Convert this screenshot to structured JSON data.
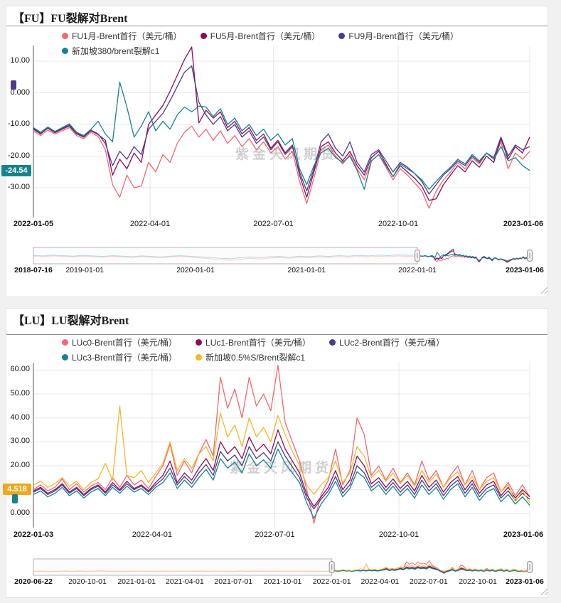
{
  "page": {
    "watermark": "紫金天风期货"
  },
  "chart_data": [
    {
      "type": "line",
      "title": "【FU】FU裂解对Brent",
      "x_range": [
        "2022-01-05",
        "2023-01-06"
      ],
      "ylim": [
        -38,
        14
      ],
      "y_ticks": [
        10,
        0,
        -10,
        -20,
        -30
      ],
      "y_tick_labels": [
        "10.00",
        "0.000",
        "-10.00",
        "-20.00",
        "-30.00"
      ],
      "x_ticks": [
        {
          "label": "2022-01-05",
          "f": 0
        },
        {
          "label": "2022-04-01",
          "f": 0.235
        },
        {
          "label": "2022-07-01",
          "f": 0.4836
        },
        {
          "label": "2022-10-01",
          "f": 0.735
        },
        {
          "label": "2023-01-06",
          "f": 1
        }
      ],
      "end_badge": {
        "text": "-24.54",
        "color": "#16828D"
      },
      "series": [
        {
          "name": "FU1月-Brent首行（美元/桶）",
          "color": "#F2686F",
          "values": [
            -12,
            -13.5,
            -11.8,
            -13,
            -12,
            -11,
            -13.5,
            -14.5,
            -12.5,
            -13.8,
            -18,
            -29,
            -33,
            -26,
            -30,
            -29.5,
            -22,
            -25,
            -19.5,
            -22,
            -16,
            -12.5,
            -10.5,
            -14,
            -11.5,
            -15,
            -12,
            -16,
            -13.5,
            -17,
            -14.5,
            -18,
            -15.5,
            -19,
            -17,
            -21,
            -18.5,
            -28,
            -35,
            -27,
            -18,
            -16.5,
            -20,
            -22.5,
            -19.5,
            -24,
            -27.5,
            -21.5,
            -19.5,
            -23.5,
            -27.5,
            -24,
            -26,
            -28.5,
            -31,
            -36.5,
            -31,
            -27.5,
            -25,
            -22,
            -24,
            -20.5,
            -22.5,
            -19,
            -21,
            -15.5,
            -24,
            -19,
            -21,
            -18.5
          ]
        },
        {
          "name": "FU5月-Brent首行（美元/桶）",
          "color": "#8A0E57",
          "values": [
            -11.5,
            -13,
            -11.2,
            -12.6,
            -11.5,
            -10.5,
            -13,
            -14,
            -12,
            -13.2,
            -15,
            -26,
            -21,
            -24,
            -19,
            -22,
            -10,
            -7,
            -4,
            0.5,
            5.5,
            10.5,
            14.5,
            -9.5,
            -5.5,
            -8,
            -6,
            -11,
            -9,
            -13,
            -11,
            -15,
            -13,
            -17.5,
            -15,
            -19,
            -16.5,
            -26,
            -33,
            -25,
            -17,
            -15.5,
            -19,
            -21.5,
            -18.5,
            -23,
            -26,
            -20.5,
            -18.5,
            -22.5,
            -26.5,
            -23,
            -25,
            -27,
            -29.5,
            -34,
            -33.5,
            -29,
            -26,
            -23,
            -25,
            -21.5,
            -23.5,
            -20,
            -22,
            -14.5,
            -21,
            -17,
            -19,
            -14
          ]
        },
        {
          "name": "FU9月-Brent首行（美元/桶）",
          "color": "#4B3A8F",
          "values": [
            -11.2,
            -12.8,
            -11,
            -12.4,
            -11.2,
            -10.2,
            -12.8,
            -13.8,
            -11.8,
            -13,
            -16,
            -23,
            -18.5,
            -21,
            -17,
            -19.5,
            -11.5,
            -9,
            -6.5,
            -2.5,
            2,
            6.5,
            8.5,
            -3,
            -7,
            -10,
            -7.5,
            -12,
            -10,
            -14,
            -12,
            -16,
            -14,
            -18,
            -15.5,
            -19.5,
            -17,
            -25,
            -31,
            -24,
            -15.5,
            -13,
            -17.5,
            -20,
            -15.5,
            -22,
            -25,
            -19.5,
            -18,
            -21.5,
            -25,
            -22,
            -23.5,
            -25.5,
            -28,
            -32,
            -29,
            -26,
            -24,
            -21.5,
            -23,
            -20,
            -22,
            -19,
            -20.5,
            -14,
            -20,
            -16.5,
            -18,
            -17
          ]
        },
        {
          "name": "新加坡380/brent裂解c1",
          "color": "#16828D",
          "values": [
            -11,
            -12.5,
            -10.8,
            -12.2,
            -11,
            -9.8,
            -12.5,
            -13.5,
            -11.5,
            -9,
            -13,
            -15.5,
            3.4,
            -4.5,
            -14,
            -10.5,
            -6,
            -12,
            -9,
            -11.5,
            -7,
            -4.5,
            -6,
            -4.2,
            -4.5,
            -7.5,
            -5,
            -10,
            -8,
            -12,
            -10,
            -13.5,
            -11.5,
            -15,
            -13,
            -16.5,
            -14.5,
            -24,
            -29,
            -23,
            -19,
            -17.5,
            -20.5,
            -22,
            -20,
            -24.5,
            -30.5,
            -21.5,
            -19.5,
            -23,
            -26.5,
            -22.5,
            -24,
            -25.5,
            -27.5,
            -30.5,
            -28,
            -25.5,
            -23.5,
            -21,
            -22.5,
            -19.5,
            -21.5,
            -19,
            -21,
            -17,
            -21.5,
            -20.5,
            -23,
            -24.54
          ]
        }
      ],
      "navigator": {
        "selected_from": 0.7737,
        "range_ticks": [
          {
            "label": "2018-07-16",
            "f": 0
          },
          {
            "label": "2019-01-01",
            "f": 0.1034
          },
          {
            "label": "2020-01-01",
            "f": 0.3266
          },
          {
            "label": "2021-01-01",
            "f": 0.5505
          },
          {
            "label": "2022-01-01",
            "f": 0.7737
          },
          {
            "label": "2023-01-06",
            "f": 1
          }
        ],
        "history_series": [
          {
            "color": "#F2686F",
            "values": [
              -12,
              -14,
              -11,
              -13,
              -15,
              -12,
              -14,
              -16,
              -13,
              -15,
              -17,
              -14,
              -16,
              -18,
              -15,
              -13,
              -16,
              -19,
              -22,
              -26,
              -28,
              -24,
              -20,
              -23,
              -19,
              -17,
              -20,
              -16,
              -18,
              -15,
              -17,
              -14,
              -16,
              -13,
              -15,
              -12,
              -14,
              -11,
              -13,
              -12
            ]
          },
          {
            "color": "#16828D",
            "values": [
              -9,
              -11,
              -8,
              -10,
              -12,
              -9,
              -11,
              -13,
              -10,
              -12,
              -14,
              -11,
              -13,
              -15,
              -12,
              -10,
              -13,
              -15,
              -17,
              -20,
              -22,
              -18,
              -15,
              -18,
              -14,
              -13,
              -16,
              -12,
              -14,
              -11,
              -13,
              -10,
              -12,
              -9,
              -11,
              -8,
              -10,
              -7,
              -9,
              -8
            ]
          }
        ]
      }
    },
    {
      "type": "line",
      "title": "【LU】LU裂解对Brent",
      "x_range": [
        "2022-01-03",
        "2023-01-06"
      ],
      "ylim": [
        -6,
        63
      ],
      "y_ticks": [
        60,
        50,
        40,
        30,
        20,
        10,
        0
      ],
      "y_tick_labels": [
        "60.00",
        "50.00",
        "40.00",
        "30.00",
        "20.00",
        "10.00",
        "0.000"
      ],
      "x_ticks": [
        {
          "label": "2022-01-03",
          "f": 0
        },
        {
          "label": "2022-04-01",
          "f": 0.2391
        },
        {
          "label": "2022-07-01",
          "f": 0.4864
        },
        {
          "label": "2022-10-01",
          "f": 0.7364
        },
        {
          "label": "2023-01-06",
          "f": 1
        }
      ],
      "end_badge": {
        "text": "4.518",
        "color": "#F0A71D"
      },
      "series": [
        {
          "name": "LUc0-Brent首行（美元/桶）",
          "color": "#F2686F",
          "values": [
            10,
            12,
            9.5,
            11,
            14.5,
            10,
            12.5,
            9,
            11.5,
            13,
            10,
            15,
            11,
            16,
            12,
            14,
            10.5,
            15.5,
            20,
            29,
            16,
            22,
            17,
            25,
            31,
            24,
            57,
            44,
            52,
            40,
            57,
            45,
            50,
            43,
            62,
            38,
            30,
            22,
            10,
            -4,
            8,
            14,
            27,
            12,
            18,
            40,
            33,
            16,
            20,
            14,
            19,
            13,
            17,
            12,
            22,
            14,
            18,
            11,
            16,
            20,
            12,
            18,
            10,
            15,
            17,
            9,
            13,
            7.5,
            12,
            7
          ]
        },
        {
          "name": "LUc1-Brent首行（美元/桶）",
          "color": "#8A0E57",
          "values": [
            9.5,
            11,
            8.5,
            10,
            12.5,
            9,
            11,
            8,
            10.5,
            12,
            9,
            13,
            10,
            13.5,
            10.5,
            12,
            9.5,
            13,
            16,
            22,
            13,
            17,
            14,
            19,
            23,
            18,
            30,
            25,
            28,
            23,
            32,
            26,
            29,
            25,
            35,
            27,
            22,
            17,
            8,
            3,
            7,
            11,
            18,
            10,
            14,
            24,
            20,
            12.5,
            15,
            11,
            14.5,
            10.5,
            13.5,
            9.5,
            16,
            11,
            14,
            9,
            13,
            15.5,
            10,
            14,
            8.5,
            12,
            13.5,
            7.5,
            11,
            6.5,
            10,
            7
          ]
        },
        {
          "name": "LUc2-Brent首行（美元/桶）",
          "color": "#4B3A8F",
          "values": [
            9,
            10.5,
            8,
            9.5,
            12,
            8.5,
            10.5,
            7.5,
            10,
            11.5,
            8.5,
            12,
            9.5,
            12.5,
            10,
            11.5,
            9,
            12,
            14.5,
            19,
            12,
            15.5,
            12.5,
            17,
            20.5,
            16,
            26,
            22,
            24.5,
            20,
            28,
            23,
            25.5,
            22,
            30,
            24,
            19.5,
            15,
            6.5,
            2,
            6,
            9.5,
            15.5,
            8.5,
            12,
            20,
            17,
            11,
            13.5,
            9.5,
            13,
            9,
            12,
            8,
            14,
            9.5,
            12.5,
            7.5,
            11.5,
            14,
            8.5,
            12.5,
            7,
            10.5,
            12,
            6.5,
            9.5,
            5.5,
            8.5,
            6
          ]
        },
        {
          "name": "LUc3-Brent首行（美元/桶）",
          "color": "#16828D",
          "values": [
            8,
            9.5,
            7,
            8.5,
            11,
            7.5,
            9.5,
            6.5,
            9,
            10.5,
            7.5,
            11,
            8.5,
            11.5,
            9,
            10.5,
            8,
            11,
            13,
            17,
            10.5,
            14,
            11,
            15,
            18.5,
            14,
            23,
            19,
            21.5,
            17,
            25,
            20,
            22.5,
            19,
            27,
            21,
            17,
            13,
            4.5,
            -2,
            4,
            8,
            13.5,
            7,
            10.5,
            17.5,
            15,
            9.5,
            12,
            8,
            11.5,
            7.5,
            10.5,
            6.5,
            12,
            8,
            11,
            6,
            10,
            12.5,
            7,
            11,
            5.5,
            9,
            10.5,
            5,
            8,
            4,
            7,
            3.5
          ]
        },
        {
          "name": "新加坡0.5%S/Brent裂解c1",
          "color": "#F6B62B",
          "values": [
            12,
            13.5,
            11,
            12.5,
            15,
            11.5,
            13.5,
            10,
            13,
            14.5,
            21,
            14,
            45,
            16,
            15,
            18,
            13,
            17,
            21,
            30,
            18,
            23,
            19,
            25,
            28,
            22,
            42,
            32,
            37,
            28,
            40,
            32,
            36,
            30,
            41,
            33,
            26,
            20,
            12,
            8,
            12,
            15,
            22,
            13,
            17,
            28,
            24,
            15,
            18,
            13.5,
            17,
            12.5,
            16,
            11.5,
            18,
            13,
            16.5,
            11,
            15,
            17.5,
            12,
            15.5,
            10,
            13.5,
            15,
            9,
            12,
            5,
            9.5,
            4.518
          ]
        }
      ],
      "navigator": {
        "selected_from": 0.6013,
        "range_ticks": [
          {
            "label": "2020-06-22",
            "f": 0
          },
          {
            "label": "2020-10-01",
            "f": 0.1088
          },
          {
            "label": "2021-01-01",
            "f": 0.208
          },
          {
            "label": "2021-04-01",
            "f": 0.305
          },
          {
            "label": "2021-07-01",
            "f": 0.403
          },
          {
            "label": "2021-10-01",
            "f": 0.5022
          },
          {
            "label": "2022-01-01",
            "f": 0.6013
          },
          {
            "label": "2022-04-01",
            "f": 0.6983
          },
          {
            "label": "2022-07-01",
            "f": 0.7963
          },
          {
            "label": "2022-10-01",
            "f": 0.8955
          },
          {
            "label": "2023-01-06",
            "f": 1
          }
        ],
        "history_series": [
          {
            "color": "#F6B62B",
            "values": [
              8,
              9,
              7,
              8.5,
              10,
              8,
              9.5,
              7.5,
              9,
              10.5,
              8,
              9,
              7.5,
              8.5,
              10,
              9,
              8,
              9.5,
              7.5,
              9,
              10,
              8.5,
              9.5,
              8,
              10,
              9,
              8,
              9.5,
              8.5,
              10,
              9,
              8.5,
              9.5,
              8,
              9,
              10,
              8.5,
              9,
              8,
              9
            ]
          },
          {
            "color": "#F2686F",
            "values": [
              6,
              7,
              5.5,
              7,
              8,
              6.5,
              7.5,
              6,
              7,
              8,
              6.5,
              7,
              6,
              7,
              8,
              7,
              6.5,
              7.5,
              6,
              7,
              8,
              7,
              7.5,
              6.5,
              8,
              7,
              6.5,
              7.5,
              7,
              8,
              7,
              7,
              7.5,
              6.5,
              7,
              8,
              7,
              7,
              6.5,
              7
            ]
          }
        ]
      }
    }
  ]
}
